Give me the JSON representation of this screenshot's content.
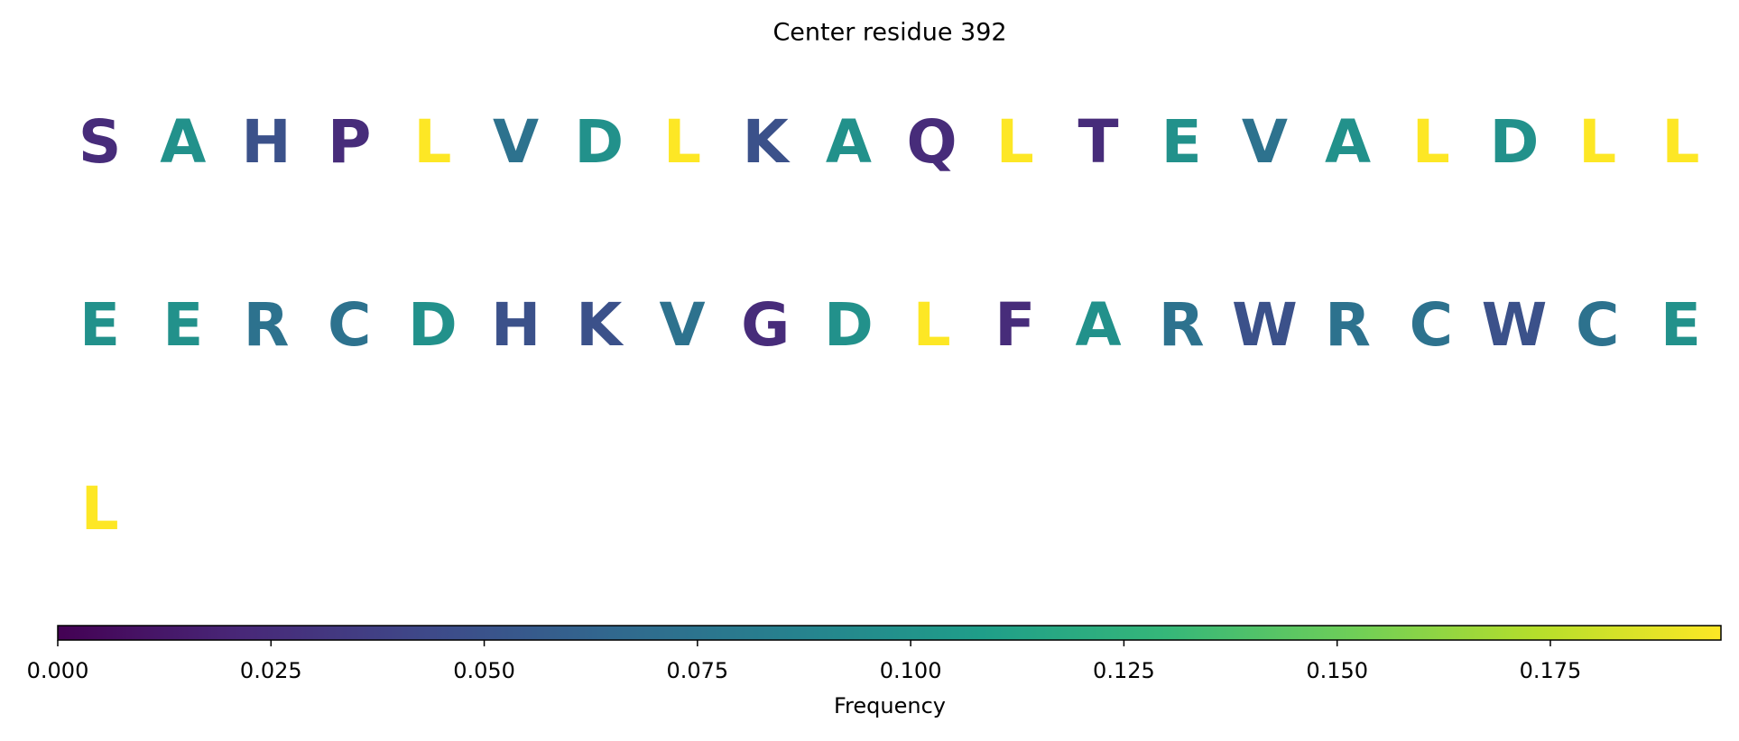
{
  "chart_data": {
    "type": "letter-grid",
    "title": "Center residue 392",
    "letters": [
      "S",
      "A",
      "H",
      "P",
      "L",
      "V",
      "D",
      "L",
      "K",
      "A",
      "Q",
      "L",
      "T",
      "E",
      "V",
      "A",
      "L",
      "D",
      "L",
      "L",
      "E",
      "E",
      "R",
      "C",
      "D",
      "H",
      "K",
      "V",
      "G",
      "D",
      "L",
      "F",
      "A",
      "R",
      "W",
      "R",
      "C",
      "W",
      "C",
      "E",
      "L"
    ],
    "values": [
      0.024,
      0.098,
      0.049,
      0.024,
      0.195,
      0.073,
      0.098,
      0.195,
      0.049,
      0.098,
      0.024,
      0.195,
      0.024,
      0.098,
      0.073,
      0.098,
      0.195,
      0.098,
      0.195,
      0.195,
      0.098,
      0.098,
      0.073,
      0.073,
      0.098,
      0.049,
      0.049,
      0.073,
      0.024,
      0.098,
      0.195,
      0.024,
      0.098,
      0.073,
      0.049,
      0.073,
      0.073,
      0.049,
      0.073,
      0.098,
      0.195
    ],
    "colormap": "viridis",
    "colorbar_label": "Frequency",
    "clim": [
      0,
      0.195
    ],
    "cticks": [
      {
        "value": 0,
        "label": "0.000"
      },
      {
        "value": 0.025,
        "label": "0.025"
      },
      {
        "value": 0.05,
        "label": "0.050"
      },
      {
        "value": 0.075,
        "label": "0.075"
      },
      {
        "value": 0.1,
        "label": "0.100"
      },
      {
        "value": 0.125,
        "label": "0.125"
      },
      {
        "value": 0.15,
        "label": "0.150"
      },
      {
        "value": 0.175,
        "label": "0.175"
      }
    ]
  }
}
